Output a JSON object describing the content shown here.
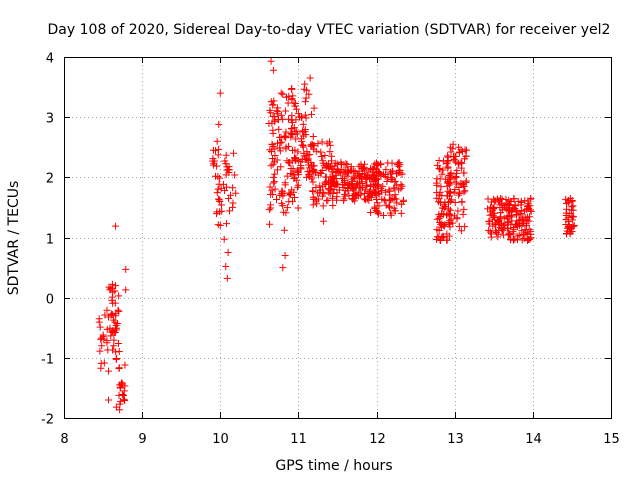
{
  "chart_data": {
    "type": "scatter",
    "title": "Day 108 of 2020, Sidereal Day-to-day VTEC variation (SDTVAR) for receiver yel2",
    "xlabel": "GPS time / hours",
    "ylabel": "SDTVAR / TECUs",
    "xlim": [
      8,
      15
    ],
    "ylim": [
      -2,
      4
    ],
    "xticks": [
      "8",
      "9",
      "10",
      "11",
      "12",
      "13",
      "14",
      "15"
    ],
    "yticks": [
      "-2",
      "-1",
      "0",
      "1",
      "2",
      "3",
      "4"
    ],
    "grid": true,
    "marker": "+",
    "color": "#ff0000",
    "clusters": [
      {
        "x": [
          8.42,
          8.72
        ],
        "y": [
          -1.2,
          -0.2
        ],
        "n": 38
      },
      {
        "x": [
          8.55,
          8.7
        ],
        "y": [
          -0.8,
          0.25
        ],
        "n": 22
      },
      {
        "x": [
          8.7,
          8.78
        ],
        "y": [
          -1.9,
          -1.3
        ],
        "n": 16
      },
      {
        "x": [
          9.9,
          10.02
        ],
        "y": [
          1.15,
          2.5
        ],
        "n": 26
      },
      {
        "x": [
          10.02,
          10.2
        ],
        "y": [
          1.4,
          2.4
        ],
        "n": 22
      },
      {
        "x": [
          10.62,
          11.0
        ],
        "y": [
          1.4,
          3.4
        ],
        "n": 120
      },
      {
        "x": [
          10.9,
          11.2
        ],
        "y": [
          2.0,
          3.5
        ],
        "n": 80
      },
      {
        "x": [
          11.15,
          11.45
        ],
        "y": [
          1.5,
          2.6
        ],
        "n": 70
      },
      {
        "x": [
          11.35,
          12.0
        ],
        "y": [
          1.6,
          2.25
        ],
        "n": 180
      },
      {
        "x": [
          11.9,
          12.35
        ],
        "y": [
          1.35,
          2.25
        ],
        "n": 110
      },
      {
        "x": [
          12.76,
          12.95
        ],
        "y": [
          0.95,
          2.3
        ],
        "n": 70
      },
      {
        "x": [
          12.9,
          13.15
        ],
        "y": [
          1.1,
          2.5
        ],
        "n": 80
      },
      {
        "x": [
          13.42,
          13.7
        ],
        "y": [
          1.0,
          1.65
        ],
        "n": 80
      },
      {
        "x": [
          13.68,
          13.98
        ],
        "y": [
          0.95,
          1.65
        ],
        "n": 100
      },
      {
        "x": [
          14.42,
          14.52
        ],
        "y": [
          1.05,
          1.65
        ],
        "n": 35
      }
    ],
    "points": [
      [
        8.66,
        1.19
      ],
      [
        8.79,
        0.47
      ],
      [
        8.79,
        0.13
      ],
      [
        8.78,
        -1.12
      ],
      [
        8.57,
        -1.7
      ],
      [
        8.67,
        -1.82
      ],
      [
        8.57,
        -1.22
      ],
      [
        8.62,
        0.22
      ],
      [
        8.66,
        0.2
      ],
      [
        8.45,
        -0.35
      ],
      [
        8.55,
        -0.75
      ],
      [
        8.62,
        -0.55
      ],
      [
        10.0,
        3.4
      ],
      [
        9.98,
        2.88
      ],
      [
        9.96,
        2.6
      ],
      [
        10.05,
        0.97
      ],
      [
        10.07,
        0.52
      ],
      [
        10.09,
        0.32
      ],
      [
        10.1,
        0.75
      ],
      [
        10.08,
        1.23
      ],
      [
        10.0,
        1.2
      ],
      [
        10.17,
        2.4
      ],
      [
        10.65,
        3.93
      ],
      [
        10.68,
        3.78
      ],
      [
        10.63,
        1.22
      ],
      [
        10.8,
        0.5
      ],
      [
        10.83,
        0.7
      ],
      [
        10.82,
        1.12
      ],
      [
        10.67,
        3.2
      ],
      [
        10.7,
        2.95
      ],
      [
        11.15,
        3.65
      ],
      [
        11.08,
        3.55
      ],
      [
        11.2,
        3.15
      ],
      [
        11.32,
        1.27
      ],
      [
        11.35,
        1.88
      ],
      [
        12.82,
        0.95
      ],
      [
        12.85,
        1.02
      ],
      [
        13.1,
        2.43
      ],
      [
        13.05,
        2.5
      ],
      [
        12.98,
        2.55
      ],
      [
        13.15,
        2.45
      ],
      [
        13.12,
        1.85
      ],
      [
        12.8,
        2.28
      ],
      [
        12.82,
        1.35
      ],
      [
        14.48,
        1.65
      ],
      [
        14.5,
        1.6
      ],
      [
        14.5,
        1.1
      ],
      [
        14.53,
        1.2
      ]
    ]
  }
}
